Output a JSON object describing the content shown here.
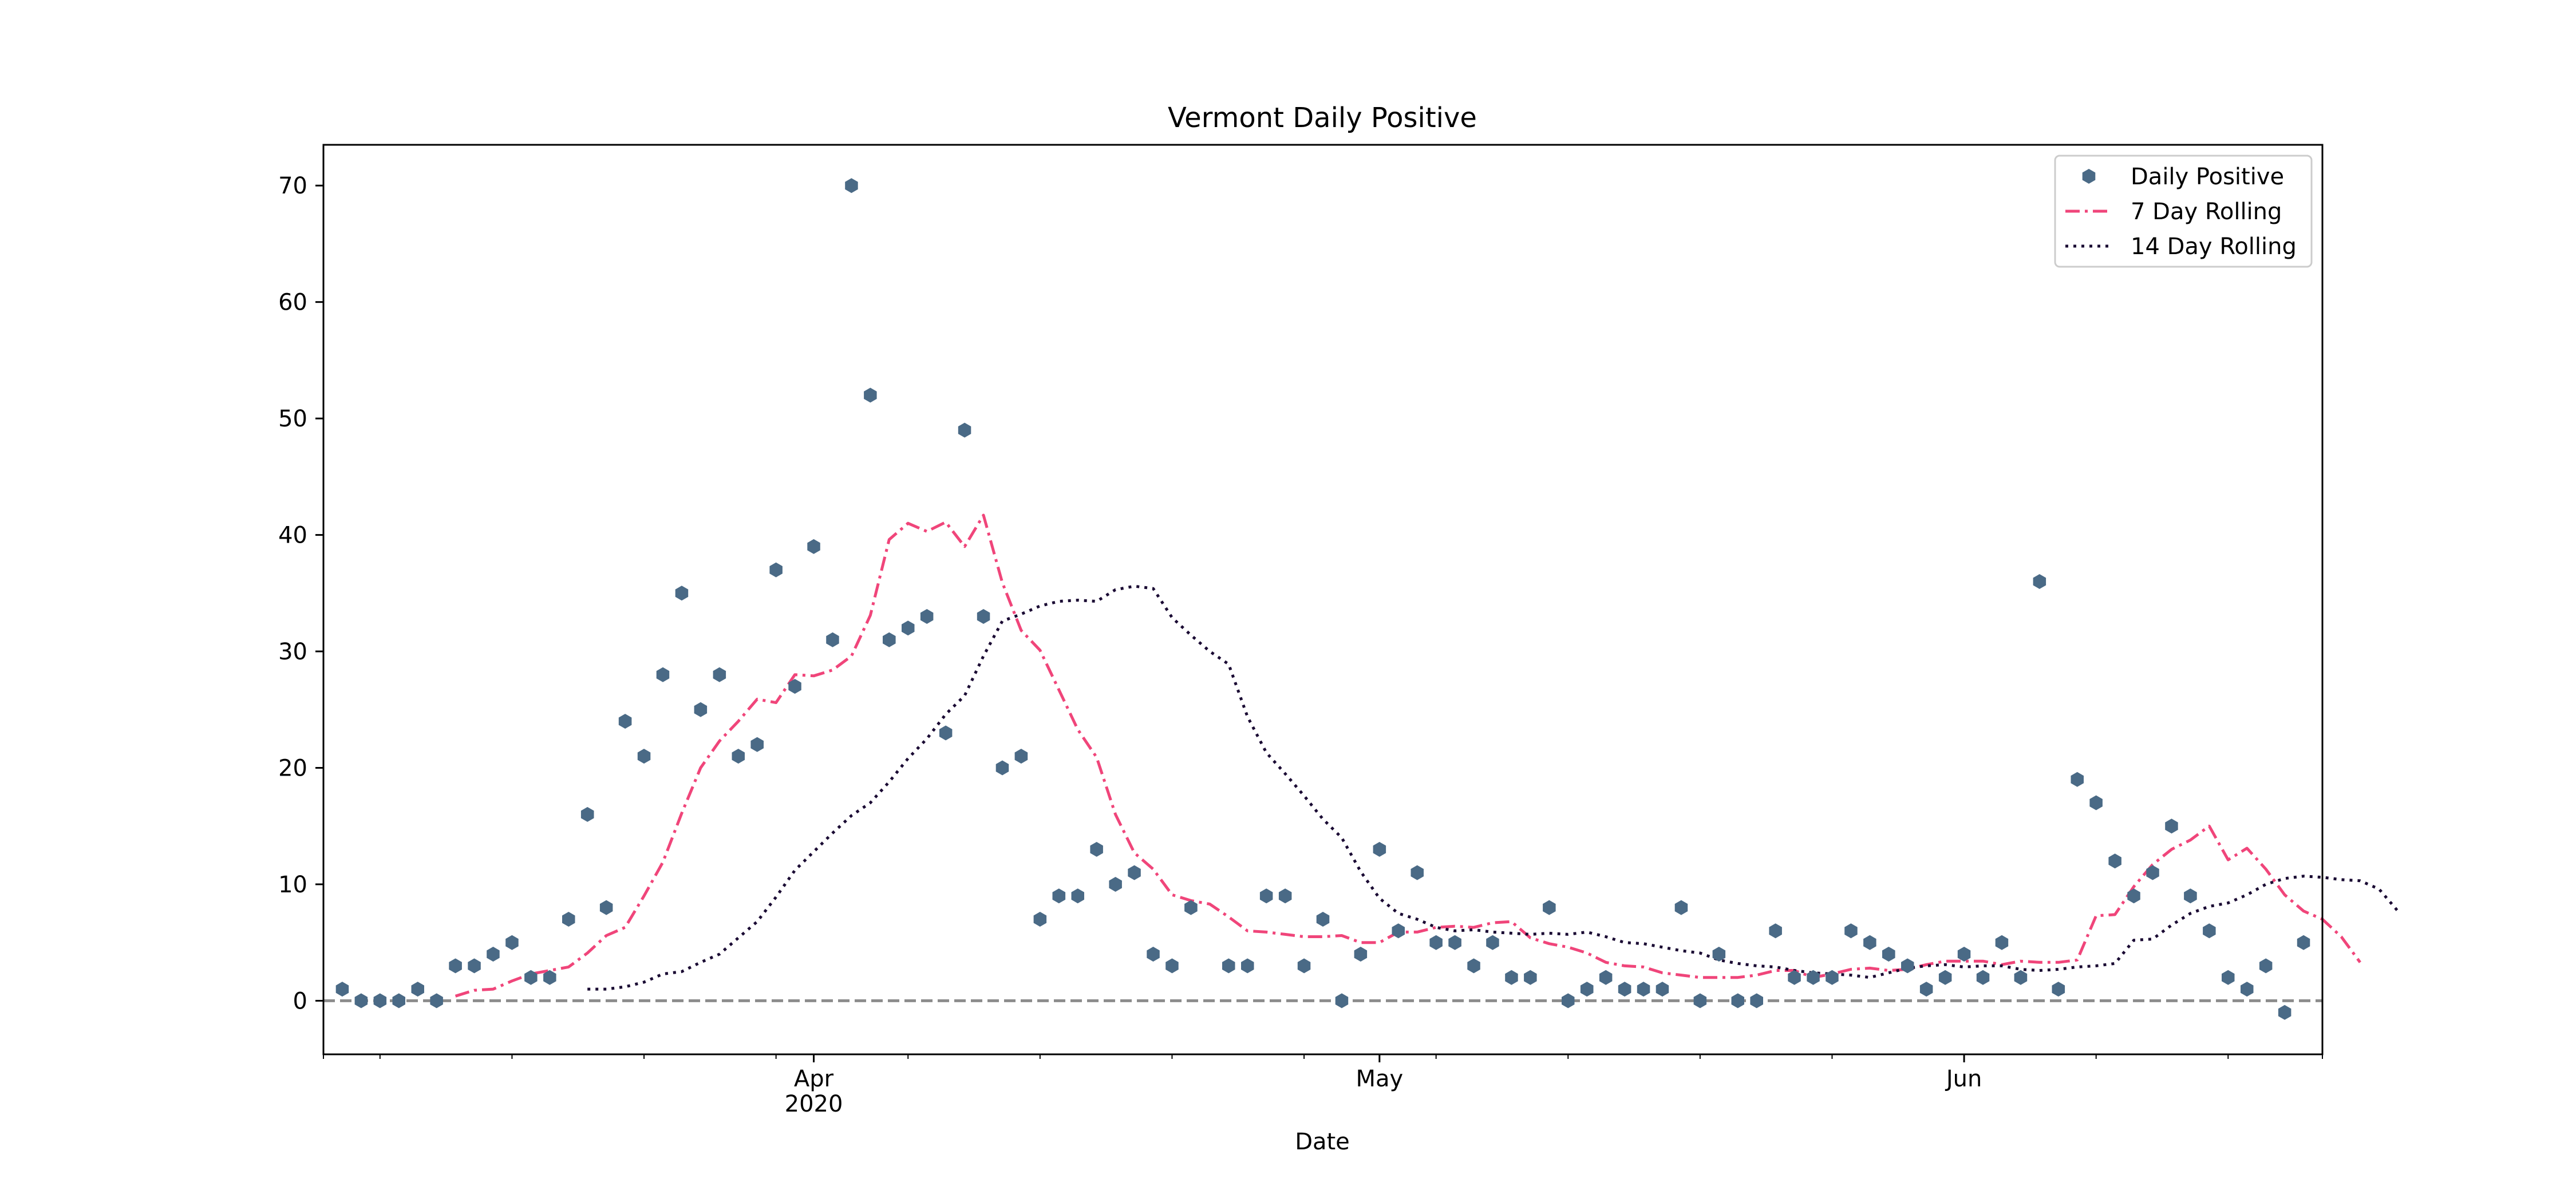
{
  "chart_data": {
    "type": "scatter",
    "title": "Vermont Daily Positive",
    "xlabel": "Date",
    "ylabel": "",
    "ylim": [
      -4.6,
      73.5
    ],
    "yticks": [
      0,
      10,
      20,
      30,
      40,
      50,
      60,
      70
    ],
    "x_start": "2020-03-06",
    "x_end": "2020-06-20",
    "xtick_labels": [
      {
        "date": "2020-04-01",
        "label": "Apr",
        "sublabel": "2020"
      },
      {
        "date": "2020-05-01",
        "label": "May",
        "sublabel": ""
      },
      {
        "date": "2020-06-01",
        "label": "Jun",
        "sublabel": ""
      }
    ],
    "reference_line": {
      "y": 0,
      "style": "dashed",
      "color": "#8c8c8c"
    },
    "legend": {
      "placement": "top-right",
      "entries": [
        "Daily Positive",
        "7 Day Rolling",
        "14 Day Rolling"
      ]
    },
    "dates_start": "2020-03-07",
    "series": [
      {
        "name": "Daily Positive",
        "style": "markers",
        "color": "#4a6a86",
        "values": [
          1,
          0,
          0,
          0,
          1,
          0,
          3,
          3,
          4,
          5,
          2,
          2,
          7,
          16,
          8,
          24,
          21,
          28,
          35,
          25,
          28,
          21,
          22,
          37,
          27,
          39,
          31,
          70,
          52,
          31,
          32,
          33,
          23,
          49,
          33,
          20,
          21,
          7,
          9,
          9,
          13,
          10,
          11,
          4,
          3,
          8,
          null,
          3,
          3,
          9,
          9,
          3,
          7,
          0,
          4,
          13,
          6,
          11,
          5,
          5,
          3,
          5,
          2,
          2,
          8,
          0,
          1,
          2,
          1,
          1,
          1,
          8,
          0,
          4,
          0,
          0,
          6,
          2,
          2,
          2,
          6,
          5,
          4,
          3,
          1,
          2,
          4,
          2,
          5,
          2,
          36,
          1,
          19,
          17,
          12,
          9,
          11,
          15,
          9,
          6,
          2,
          1,
          3,
          -1,
          5
        ]
      },
      {
        "name": "7 Day Rolling",
        "style": "dashdot",
        "color": "#f0457a",
        "values": [
          null,
          null,
          null,
          null,
          null,
          null,
          0.4,
          0.9,
          1.0,
          1.7,
          2.3,
          2.6,
          2.9,
          4.1,
          5.6,
          6.3,
          9.0,
          11.9,
          16.1,
          20.0,
          22.3,
          24.0,
          25.9,
          25.6,
          28.0,
          27.9,
          28.4,
          29.6,
          33.1,
          39.6,
          41.0,
          40.3,
          41.1,
          39.0,
          41.7,
          35.9,
          31.8,
          30.1,
          26.7,
          23.3,
          20.9,
          16.0,
          12.7,
          11.3,
          9.1,
          8.6,
          8.3,
          7.2,
          6.0,
          5.9,
          5.7,
          5.5,
          5.5,
          5.6,
          5.0,
          5.0,
          5.9,
          5.9,
          6.3,
          6.4,
          6.3,
          6.7,
          6.8,
          5.4,
          4.9,
          4.6,
          4.1,
          3.3,
          3.0,
          2.9,
          2.4,
          2.2,
          2.0,
          2.0,
          2.0,
          2.2,
          2.6,
          2.6,
          2.0,
          2.3,
          2.7,
          2.8,
          2.6,
          2.7,
          3.1,
          3.4,
          3.4,
          3.4,
          3.1,
          3.4,
          3.3,
          3.3,
          3.5,
          7.3,
          7.4,
          9.8,
          11.7,
          13.0,
          13.8,
          15.0,
          12.1,
          13.1,
          11.3,
          9.1,
          7.7,
          7.0,
          5.5,
          3.3
        ]
      },
      {
        "name": "14 Day Rolling",
        "style": "dotted",
        "color": "#1a0a33",
        "values": [
          null,
          null,
          null,
          null,
          null,
          null,
          null,
          null,
          null,
          null,
          null,
          null,
          null,
          1.0,
          1.0,
          1.2,
          1.6,
          2.3,
          2.5,
          3.3,
          4.0,
          5.4,
          6.8,
          8.9,
          11.2,
          12.8,
          14.4,
          15.9,
          17.0,
          18.8,
          20.8,
          22.5,
          24.6,
          26.2,
          29.6,
          32.6,
          33.2,
          33.9,
          34.3,
          34.4,
          34.3,
          35.3,
          35.6,
          35.4,
          32.9,
          31.4,
          30.0,
          28.9,
          24.4,
          21.3,
          19.5,
          17.6,
          15.6,
          14.0,
          11.1,
          8.8,
          7.5,
          7.0,
          6.3,
          6.0,
          6.1,
          5.9,
          5.8,
          5.7,
          5.8,
          5.7,
          5.9,
          5.5,
          5.0,
          4.9,
          4.6,
          4.3,
          4.1,
          3.5,
          3.2,
          3.0,
          2.9,
          2.6,
          2.4,
          2.3,
          2.2,
          2.0,
          2.4,
          2.8,
          3.0,
          3.1,
          2.9,
          3.0,
          3.0,
          2.7,
          2.6,
          2.7,
          2.9,
          3.0,
          3.2,
          5.2,
          5.3,
          6.5,
          7.5,
          8.1,
          8.4,
          9.1,
          10.0,
          10.5,
          10.7,
          10.6,
          10.4,
          10.3,
          9.6,
          7.7
        ]
      }
    ]
  }
}
